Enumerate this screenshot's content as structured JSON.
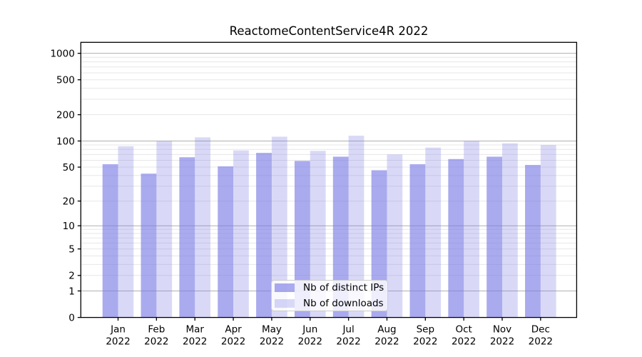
{
  "chart": {
    "colors": {
      "bars_distinct_ips": "rgba(120,120,228,0.63)",
      "bars_downloads": "rgba(120,120,228,0.28)",
      "grid_major": "#b0b0b0",
      "grid_minor": "#e7e7e7",
      "axis": "#000000",
      "legend_border": "#cccccc",
      "legend_background": "rgba(255,255,255,0.8)"
    }
  },
  "legend": {
    "items": [
      {
        "label": "Nb of distinct IPs"
      },
      {
        "label": "Nb of downloads"
      }
    ]
  },
  "chart_data": {
    "type": "bar",
    "title": "ReactomeContentService4R 2022",
    "categories": [
      "Jan 2022",
      "Feb 2022",
      "Mar 2022",
      "Apr 2022",
      "May 2022",
      "Jun 2022",
      "Jul 2022",
      "Aug 2022",
      "Sep 2022",
      "Oct 2022",
      "Nov 2022",
      "Dec 2022"
    ],
    "x_tick_line1": [
      "Jan",
      "Feb",
      "Mar",
      "Apr",
      "May",
      "Jun",
      "Jul",
      "Aug",
      "Sep",
      "Oct",
      "Nov",
      "Dec"
    ],
    "x_tick_line2": [
      "2022",
      "2022",
      "2022",
      "2022",
      "2022",
      "2022",
      "2022",
      "2022",
      "2022",
      "2022",
      "2022",
      "2022"
    ],
    "series": [
      {
        "name": "Nb of distinct IPs",
        "values": [
          54,
          42,
          65,
          51,
          73,
          59,
          66,
          46,
          54,
          62,
          66,
          53
        ]
      },
      {
        "name": "Nb of downloads",
        "values": [
          87,
          100,
          110,
          78,
          112,
          77,
          115,
          70,
          84,
          100,
          94,
          90
        ]
      }
    ],
    "yscale": "log1p",
    "y_ticks": [
      0,
      1,
      2,
      5,
      10,
      20,
      50,
      100,
      200,
      500,
      1000
    ],
    "ylim": [
      0,
      1300
    ],
    "grid": true,
    "legend_position": "lower center"
  }
}
